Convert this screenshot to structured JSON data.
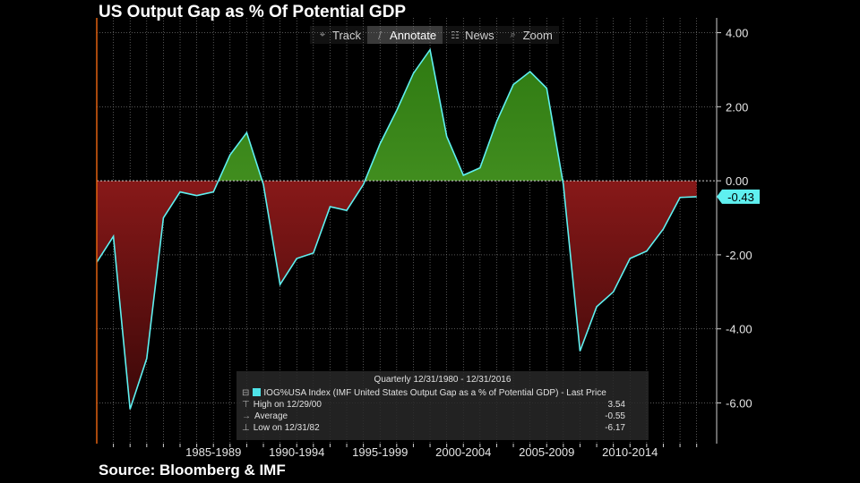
{
  "title": "US Output Gap as % Of Potential GDP",
  "source": "Source: Bloomberg & IMF",
  "toolbar": [
    {
      "label": "Track",
      "icon": "crosshair-icon",
      "glyph": "⌖",
      "active": false
    },
    {
      "label": "Annotate",
      "icon": "pencil-icon",
      "glyph": "∕",
      "active": true
    },
    {
      "label": "News",
      "icon": "news-icon",
      "glyph": "☷",
      "active": false
    },
    {
      "label": "Zoom",
      "icon": "magnifier-icon",
      "glyph": "⌕",
      "active": false
    }
  ],
  "legend": {
    "range": "Quarterly 12/31/1980 - 12/31/2016",
    "series_label": "IOG%USA Index (IMF United States Output Gap as a % of Potential GDP) - Last Price",
    "high_label": "High on 12/29/00",
    "high_value": "3.54",
    "avg_label": "Average",
    "avg_value": "-0.55",
    "low_label": "Low on 12/31/82",
    "low_value": "-6.17"
  },
  "chart_data": {
    "type": "area",
    "x": [
      1980,
      1981,
      1982,
      1983,
      1984,
      1985,
      1986,
      1987,
      1988,
      1989,
      1990,
      1991,
      1992,
      1993,
      1994,
      1995,
      1996,
      1997,
      1998,
      1999,
      2000,
      2001,
      2002,
      2003,
      2004,
      2005,
      2006,
      2007,
      2008,
      2009,
      2010,
      2011,
      2012,
      2013,
      2014,
      2015,
      2016
    ],
    "values": [
      -2.2,
      -1.5,
      -6.17,
      -4.8,
      -1.0,
      -0.3,
      -0.4,
      -0.3,
      0.7,
      1.3,
      -0.1,
      -2.8,
      -2.1,
      -1.95,
      -0.7,
      -0.8,
      -0.1,
      1.0,
      1.9,
      2.9,
      3.54,
      1.2,
      0.15,
      0.35,
      1.6,
      2.6,
      2.95,
      2.5,
      -0.1,
      -4.6,
      -3.4,
      -3.0,
      -2.1,
      -1.9,
      -1.3,
      -0.45,
      -0.43
    ],
    "last_value": "-0.43",
    "ylim": [
      -7.1,
      4.4
    ],
    "yticks": [
      "4.00",
      "2.00",
      "0.00",
      "-2.00",
      "-4.00",
      "-6.00"
    ],
    "ytick_values": [
      4,
      2,
      0,
      -2,
      -4,
      -6
    ],
    "xtick_labels": [
      "1985-1989",
      "1990-1994",
      "1995-1999",
      "2000-2004",
      "2005-2009",
      "2010-2014"
    ],
    "xtick_centers": [
      1987,
      1992,
      1997,
      2002,
      2007,
      2012
    ],
    "x_range": [
      1980,
      2017.2
    ],
    "grid": true,
    "colors": {
      "positive": "#3f8a1e",
      "negative": "#8a1a1a",
      "line": "#5ff0f0",
      "grid": "#8a8a8a",
      "axis": "#e06010",
      "last_badge": "#5ff0f0"
    }
  }
}
